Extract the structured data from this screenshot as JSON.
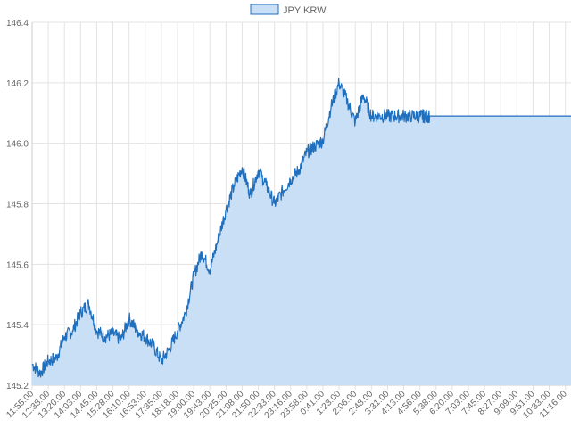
{
  "chart_data": {
    "type": "area",
    "title": "",
    "xlabel": "",
    "ylabel": "",
    "legend": {
      "position": "top",
      "entries": [
        "JPY KRW"
      ]
    },
    "grid": true,
    "ylim": [
      145.2,
      146.4
    ],
    "y_ticks": [
      "145.2",
      "145.4",
      "145.6",
      "145.8",
      "146.0",
      "146.2",
      "146.4"
    ],
    "x_ticks": [
      "11:55:00",
      "12:38:00",
      "13:20:00",
      "14:03:00",
      "14:45:00",
      "15:28:00",
      "16:10:00",
      "16:53:00",
      "17:35:00",
      "18:18:00",
      "19:00:00",
      "19:43:00",
      "20:25:00",
      "21:08:00",
      "21:50:00",
      "22:33:00",
      "23:16:00",
      "23:58:00",
      "0:41:00",
      "1:23:00",
      "2:06:00",
      "2:48:00",
      "3:31:00",
      "4:13:00",
      "4:56:00",
      "5:38:00",
      "6:20:00",
      "7:03:00",
      "7:45:00",
      "8:27:00",
      "9:09:00",
      "9:51:00",
      "10:33:00",
      "11:16:00"
    ],
    "series": [
      {
        "name": "JPY KRW",
        "color": "#1f6fbf",
        "fill": "#c8dff5",
        "x_index": [
          0,
          0.5,
          1,
          1.5,
          2,
          2.5,
          3,
          3.5,
          4,
          4.5,
          5,
          5.5,
          6,
          6.5,
          7,
          7.5,
          8,
          8.5,
          9,
          9.5,
          10,
          10.5,
          11,
          11.5,
          12,
          12.5,
          13,
          13.5,
          14,
          14.5,
          15,
          15.5,
          16,
          16.5,
          17,
          17.5,
          18,
          18.5,
          19,
          19.5,
          20,
          20.5,
          21,
          21.5,
          22,
          22.5,
          23,
          23.5,
          24,
          24.3,
          24.6,
          25,
          25.5,
          26,
          27,
          28,
          29,
          30,
          31,
          32,
          33,
          34,
          35
        ],
        "values": [
          145.27,
          145.24,
          145.28,
          145.29,
          145.36,
          145.38,
          145.44,
          145.47,
          145.38,
          145.36,
          145.37,
          145.35,
          145.42,
          145.38,
          145.36,
          145.33,
          145.28,
          145.32,
          145.38,
          145.44,
          145.56,
          145.64,
          145.58,
          145.68,
          145.78,
          145.86,
          145.92,
          145.83,
          145.91,
          145.86,
          145.8,
          145.84,
          145.88,
          145.91,
          145.97,
          145.99,
          146.01,
          146.12,
          146.2,
          146.14,
          146.07,
          146.16,
          146.09,
          146.09,
          146.09,
          146.09,
          146.09,
          146.09,
          146.09,
          146.09,
          146.09,
          146.09,
          146.09,
          146.09,
          146.09,
          146.09,
          146.09,
          146.09,
          146.09,
          146.09,
          146.09,
          146.09,
          146.09
        ]
      }
    ]
  }
}
